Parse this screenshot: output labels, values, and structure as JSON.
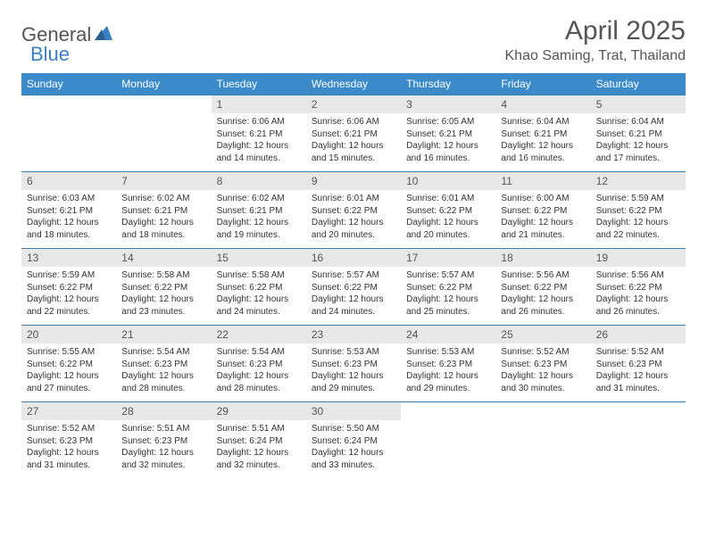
{
  "brand": {
    "name1": "General",
    "name2": "Blue"
  },
  "title": "April 2025",
  "location": "Khao Saming, Trat, Thailand",
  "colors": {
    "header_bg": "#3b8bca",
    "header_text": "#ffffff",
    "daynum_bg": "#e8e8e8",
    "cell_border": "#3b7fa8",
    "body_text": "#333333",
    "title_text": "#555555"
  },
  "daynames": [
    "Sunday",
    "Monday",
    "Tuesday",
    "Wednesday",
    "Thursday",
    "Friday",
    "Saturday"
  ],
  "weeks": [
    [
      null,
      null,
      {
        "n": "1",
        "sunrise": "6:06 AM",
        "sunset": "6:21 PM",
        "daylight": "12 hours and 14 minutes."
      },
      {
        "n": "2",
        "sunrise": "6:06 AM",
        "sunset": "6:21 PM",
        "daylight": "12 hours and 15 minutes."
      },
      {
        "n": "3",
        "sunrise": "6:05 AM",
        "sunset": "6:21 PM",
        "daylight": "12 hours and 16 minutes."
      },
      {
        "n": "4",
        "sunrise": "6:04 AM",
        "sunset": "6:21 PM",
        "daylight": "12 hours and 16 minutes."
      },
      {
        "n": "5",
        "sunrise": "6:04 AM",
        "sunset": "6:21 PM",
        "daylight": "12 hours and 17 minutes."
      }
    ],
    [
      {
        "n": "6",
        "sunrise": "6:03 AM",
        "sunset": "6:21 PM",
        "daylight": "12 hours and 18 minutes."
      },
      {
        "n": "7",
        "sunrise": "6:02 AM",
        "sunset": "6:21 PM",
        "daylight": "12 hours and 18 minutes."
      },
      {
        "n": "8",
        "sunrise": "6:02 AM",
        "sunset": "6:21 PM",
        "daylight": "12 hours and 19 minutes."
      },
      {
        "n": "9",
        "sunrise": "6:01 AM",
        "sunset": "6:22 PM",
        "daylight": "12 hours and 20 minutes."
      },
      {
        "n": "10",
        "sunrise": "6:01 AM",
        "sunset": "6:22 PM",
        "daylight": "12 hours and 20 minutes."
      },
      {
        "n": "11",
        "sunrise": "6:00 AM",
        "sunset": "6:22 PM",
        "daylight": "12 hours and 21 minutes."
      },
      {
        "n": "12",
        "sunrise": "5:59 AM",
        "sunset": "6:22 PM",
        "daylight": "12 hours and 22 minutes."
      }
    ],
    [
      {
        "n": "13",
        "sunrise": "5:59 AM",
        "sunset": "6:22 PM",
        "daylight": "12 hours and 22 minutes."
      },
      {
        "n": "14",
        "sunrise": "5:58 AM",
        "sunset": "6:22 PM",
        "daylight": "12 hours and 23 minutes."
      },
      {
        "n": "15",
        "sunrise": "5:58 AM",
        "sunset": "6:22 PM",
        "daylight": "12 hours and 24 minutes."
      },
      {
        "n": "16",
        "sunrise": "5:57 AM",
        "sunset": "6:22 PM",
        "daylight": "12 hours and 24 minutes."
      },
      {
        "n": "17",
        "sunrise": "5:57 AM",
        "sunset": "6:22 PM",
        "daylight": "12 hours and 25 minutes."
      },
      {
        "n": "18",
        "sunrise": "5:56 AM",
        "sunset": "6:22 PM",
        "daylight": "12 hours and 26 minutes."
      },
      {
        "n": "19",
        "sunrise": "5:56 AM",
        "sunset": "6:22 PM",
        "daylight": "12 hours and 26 minutes."
      }
    ],
    [
      {
        "n": "20",
        "sunrise": "5:55 AM",
        "sunset": "6:22 PM",
        "daylight": "12 hours and 27 minutes."
      },
      {
        "n": "21",
        "sunrise": "5:54 AM",
        "sunset": "6:23 PM",
        "daylight": "12 hours and 28 minutes."
      },
      {
        "n": "22",
        "sunrise": "5:54 AM",
        "sunset": "6:23 PM",
        "daylight": "12 hours and 28 minutes."
      },
      {
        "n": "23",
        "sunrise": "5:53 AM",
        "sunset": "6:23 PM",
        "daylight": "12 hours and 29 minutes."
      },
      {
        "n": "24",
        "sunrise": "5:53 AM",
        "sunset": "6:23 PM",
        "daylight": "12 hours and 29 minutes."
      },
      {
        "n": "25",
        "sunrise": "5:52 AM",
        "sunset": "6:23 PM",
        "daylight": "12 hours and 30 minutes."
      },
      {
        "n": "26",
        "sunrise": "5:52 AM",
        "sunset": "6:23 PM",
        "daylight": "12 hours and 31 minutes."
      }
    ],
    [
      {
        "n": "27",
        "sunrise": "5:52 AM",
        "sunset": "6:23 PM",
        "daylight": "12 hours and 31 minutes."
      },
      {
        "n": "28",
        "sunrise": "5:51 AM",
        "sunset": "6:23 PM",
        "daylight": "12 hours and 32 minutes."
      },
      {
        "n": "29",
        "sunrise": "5:51 AM",
        "sunset": "6:24 PM",
        "daylight": "12 hours and 32 minutes."
      },
      {
        "n": "30",
        "sunrise": "5:50 AM",
        "sunset": "6:24 PM",
        "daylight": "12 hours and 33 minutes."
      },
      null,
      null,
      null
    ]
  ],
  "labels": {
    "sunrise": "Sunrise:",
    "sunset": "Sunset:",
    "daylight": "Daylight:"
  }
}
